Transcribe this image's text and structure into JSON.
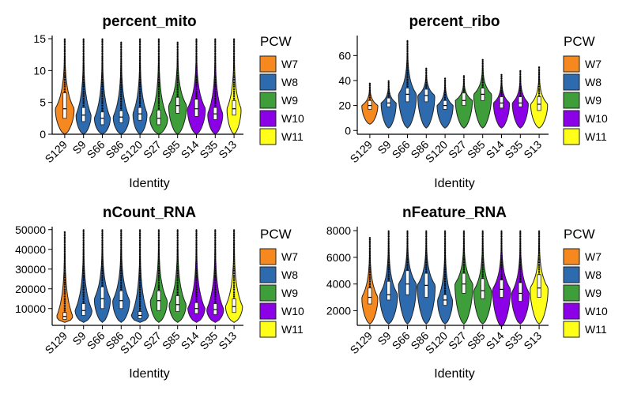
{
  "colors": {
    "W7": "#F5891F",
    "W8": "#2E6BAE",
    "W9": "#3E9E3A",
    "W10": "#8B00E6",
    "W11": "#FFFF1A"
  },
  "legend": {
    "title": "PCW",
    "items": [
      "W7",
      "W8",
      "W9",
      "W10",
      "W11"
    ]
  },
  "chart_data": [
    {
      "type": "violin",
      "title": "percent_mito",
      "xlabel": "Identity",
      "ylabel": "",
      "categories": [
        "S129",
        "S9",
        "S66",
        "S86",
        "S120",
        "S27",
        "S85",
        "S14",
        "S35",
        "S13"
      ],
      "groups": [
        "W7",
        "W8",
        "W8",
        "W8",
        "W8",
        "W9",
        "W9",
        "W10",
        "W10",
        "W11"
      ],
      "ylim": [
        0,
        15.5
      ],
      "yticks": [
        0,
        5,
        10,
        15
      ],
      "yticklabels": [
        "0",
        "5",
        "10",
        "15"
      ],
      "min": [
        0,
        0,
        0,
        0,
        0,
        0,
        0,
        0,
        0,
        0
      ],
      "max": [
        15,
        15,
        15,
        14.5,
        15,
        15,
        14.5,
        15,
        15,
        15
      ],
      "median": [
        4,
        3,
        2.5,
        2.7,
        3.2,
        2.5,
        4.5,
        4,
        3.2,
        4
      ],
      "q1": [
        2.5,
        2,
        1.5,
        1.8,
        2.2,
        1.5,
        3.3,
        2.8,
        2.3,
        3
      ],
      "q3": [
        6.5,
        4.2,
        3.5,
        3.7,
        4.2,
        3.8,
        5.8,
        5.5,
        4.2,
        5.3
      ],
      "violin_width": [
        1.0,
        0.8,
        0.85,
        0.85,
        0.75,
        0.95,
        0.95,
        0.95,
        0.8,
        0.75
      ]
    },
    {
      "type": "violin",
      "title": "percent_ribo",
      "xlabel": "Identity",
      "ylabel": "",
      "categories": [
        "S129",
        "S9",
        "S66",
        "S86",
        "S120",
        "S27",
        "S85",
        "S14",
        "S35",
        "S13"
      ],
      "groups": [
        "W7",
        "W8",
        "W8",
        "W8",
        "W8",
        "W9",
        "W9",
        "W10",
        "W10",
        "W11"
      ],
      "ylim": [
        -3,
        76
      ],
      "yticks": [
        0,
        20,
        40,
        60
      ],
      "yticklabels": [
        "0",
        "20",
        "40",
        "60"
      ],
      "min": [
        5,
        2,
        2,
        2,
        2,
        2,
        2,
        2,
        2,
        2
      ],
      "max": [
        38,
        40,
        72,
        50,
        42,
        44,
        57,
        45,
        48,
        51
      ],
      "median": [
        20,
        22,
        29,
        28,
        20,
        24,
        29,
        22,
        22,
        21
      ],
      "q1": [
        17,
        19,
        23,
        23,
        17,
        20,
        24,
        18,
        19,
        16
      ],
      "q3": [
        24,
        26,
        34,
        33,
        24,
        30,
        34,
        27,
        27,
        27
      ],
      "violin_width": [
        0.85,
        0.8,
        0.95,
        0.9,
        0.85,
        0.9,
        0.95,
        0.85,
        0.85,
        0.9
      ]
    },
    {
      "type": "violin",
      "title": "nCount_RNA",
      "xlabel": "Identity",
      "ylabel": "",
      "categories": [
        "S129",
        "S9",
        "S66",
        "S86",
        "S120",
        "S27",
        "S85",
        "S14",
        "S35",
        "S13"
      ],
      "groups": [
        "W7",
        "W8",
        "W8",
        "W8",
        "W8",
        "W9",
        "W9",
        "W10",
        "W10",
        "W11"
      ],
      "ylim": [
        1500,
        51500
      ],
      "yticks": [
        10000,
        20000,
        30000,
        40000,
        50000
      ],
      "yticklabels": [
        "10000",
        "20000",
        "30000",
        "40000",
        "50000"
      ],
      "min": [
        3000,
        3000,
        3000,
        3000,
        3000,
        3000,
        3000,
        3000,
        3000,
        3000
      ],
      "max": [
        49000,
        50000,
        50000,
        50000,
        50000,
        50000,
        50000,
        50000,
        50000,
        50000
      ],
      "median": [
        6000,
        9000,
        15000,
        14000,
        6500,
        14000,
        12000,
        10000,
        9500,
        11000
      ],
      "q1": [
        4500,
        6500,
        10000,
        10000,
        5000,
        9000,
        8500,
        7500,
        7000,
        8000
      ],
      "q3": [
        8000,
        12500,
        21000,
        19000,
        8500,
        19000,
        16500,
        13000,
        12500,
        15000
      ],
      "violin_width": [
        0.85,
        0.9,
        0.85,
        0.9,
        0.9,
        0.9,
        0.9,
        0.9,
        0.9,
        0.9
      ]
    },
    {
      "type": "violin",
      "title": "nFeature_RNA",
      "xlabel": "Identity",
      "ylabel": "",
      "categories": [
        "S129",
        "S9",
        "S66",
        "S86",
        "S120",
        "S27",
        "S85",
        "S14",
        "S35",
        "S13"
      ],
      "groups": [
        "W7",
        "W8",
        "W8",
        "W8",
        "W8",
        "W9",
        "W9",
        "W10",
        "W10",
        "W11"
      ],
      "ylim": [
        900,
        8300
      ],
      "yticks": [
        2000,
        4000,
        6000,
        8000
      ],
      "yticklabels": [
        "2000",
        "4000",
        "6000",
        "8000"
      ],
      "min": [
        1000,
        1000,
        1000,
        1000,
        1000,
        1000,
        1000,
        800,
        1000,
        1000
      ],
      "max": [
        7500,
        8000,
        8000,
        8000,
        8000,
        8000,
        8000,
        8000,
        8000,
        8000
      ],
      "median": [
        3000,
        3200,
        4000,
        3900,
        2800,
        4000,
        3500,
        3600,
        3300,
        3700
      ],
      "q1": [
        2500,
        2800,
        3200,
        3000,
        2400,
        3300,
        2900,
        3000,
        2700,
        3000
      ],
      "q3": [
        3700,
        4200,
        5000,
        4800,
        3200,
        4800,
        4400,
        4300,
        4100,
        4700
      ],
      "violin_width": [
        0.85,
        0.95,
        0.95,
        0.95,
        0.8,
        0.95,
        0.95,
        0.95,
        0.95,
        0.95
      ]
    }
  ]
}
